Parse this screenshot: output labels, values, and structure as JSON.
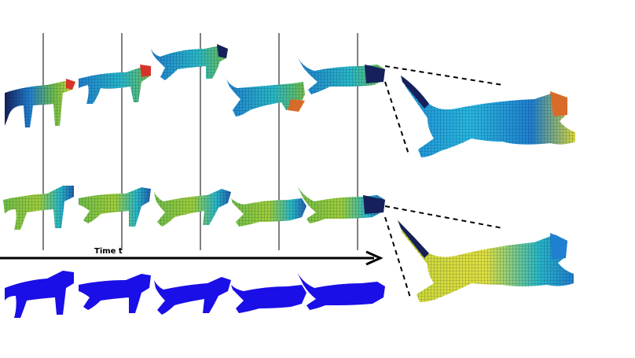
{
  "figure": {
    "time_axis_label": "Time t",
    "rows": [
      {
        "id": "top",
        "frames": 5
      },
      {
        "id": "middle",
        "frames": 5
      },
      {
        "id": "bottom",
        "frames": 5
      }
    ],
    "colors": {
      "silhouette": "#1a0fe6",
      "mesh_dark": "#1d2a6b",
      "mesh_blue": "#1f7fd0",
      "mesh_cyan": "#28b8c8",
      "mesh_green": "#6fbf4a",
      "mesh_yellow": "#d8d83a",
      "mesh_red": "#d8332a",
      "mesh_orange": "#d86a2a",
      "mesh_navy": "#16205a"
    }
  }
}
